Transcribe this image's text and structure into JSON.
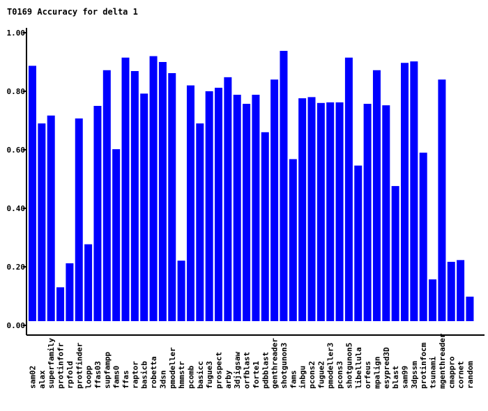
{
  "chart_data": {
    "type": "bar",
    "title": "T0169 Accuracy for delta 1",
    "xlabel": "",
    "ylabel": "",
    "ylim": [
      0,
      1.0
    ],
    "yticks": [
      0.0,
      0.2,
      0.4,
      0.6,
      0.8,
      1.0
    ],
    "ytick_labels": [
      "0.00",
      "0.20",
      "0.40",
      "0.60",
      "0.80",
      "1.00"
    ],
    "grid": false,
    "bar_color": "#0000ff",
    "categories": [
      "sam02",
      "alax",
      "superfamily",
      "protinfofr",
      "rpfold",
      "protfinder",
      "loopp",
      "ffas03",
      "supfampp",
      "fams0",
      "ffas",
      "raptor",
      "basicb",
      "robetta",
      "3dsn",
      "pmodeller",
      "hmmstr",
      "pcomb",
      "basicc",
      "fugue3",
      "prospect",
      "arby",
      "3djigsaw",
      "orfblast",
      "forte1",
      "pdbblast",
      "genthreader",
      "shotgunon3",
      "fams",
      "inbgu",
      "pcons2",
      "fugue2",
      "pmodeller3",
      "pcons3",
      "shotgunon5",
      "libellula",
      "orfeus",
      "mpalign",
      "esypred3D",
      "blast",
      "sam99",
      "3dpssm",
      "protinfocm",
      "tsunami",
      "mgenthreader",
      "cmappro",
      "cornet",
      "random"
    ],
    "values": [
      0.887,
      0.69,
      0.717,
      0.13,
      0.212,
      0.707,
      0.277,
      0.75,
      0.872,
      0.602,
      0.915,
      0.869,
      0.792,
      0.92,
      0.9,
      0.862,
      0.221,
      0.82,
      0.69,
      0.8,
      0.812,
      0.848,
      0.788,
      0.757,
      0.788,
      0.66,
      0.84,
      0.938,
      0.568,
      0.776,
      0.78,
      0.76,
      0.762,
      0.762,
      0.915,
      0.546,
      0.757,
      0.872,
      0.752,
      0.476,
      0.897,
      0.902,
      0.59,
      0.157,
      0.84,
      0.217,
      0.223,
      0.098
    ]
  }
}
